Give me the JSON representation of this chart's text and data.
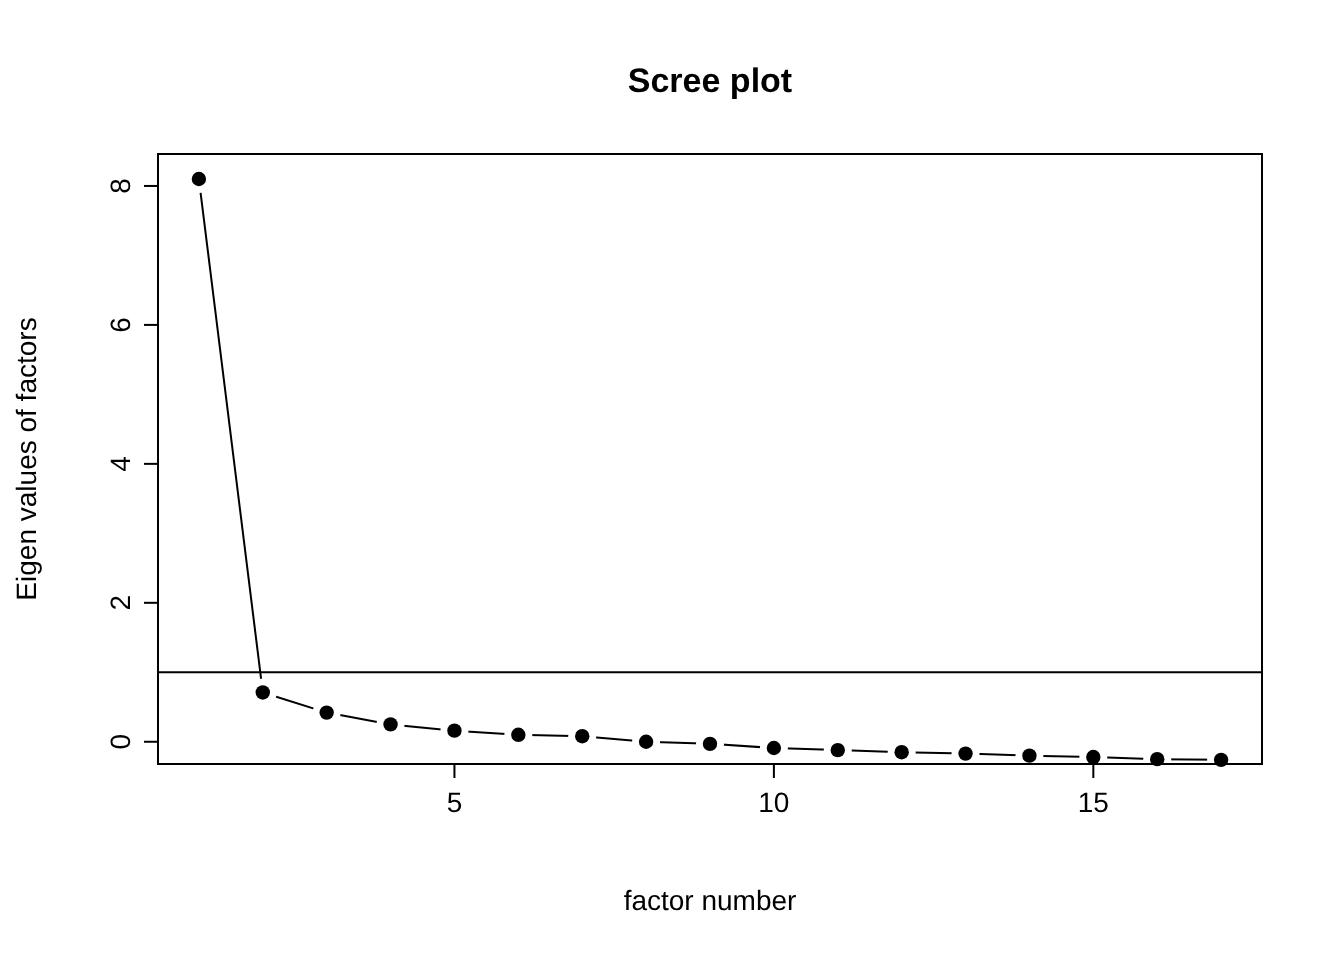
{
  "chart_data": {
    "type": "line",
    "title": "Scree plot",
    "xlabel": "factor number",
    "ylabel": "Eigen values of factors",
    "x": [
      1,
      2,
      3,
      4,
      5,
      6,
      7,
      8,
      9,
      10,
      11,
      12,
      13,
      14,
      15,
      16,
      17
    ],
    "series": [
      {
        "color": "#000000",
        "values": [
          8.1,
          0.71,
          0.42,
          0.25,
          0.16,
          0.1,
          0.08,
          0.0,
          -0.03,
          -0.09,
          -0.12,
          -0.15,
          -0.17,
          -0.2,
          -0.22,
          -0.25,
          -0.26
        ]
      }
    ],
    "xlim": [
      0.36,
      17.64
    ],
    "ylim": [
      -0.32,
      8.46
    ],
    "xticks": [
      5,
      10,
      15
    ],
    "yticks": [
      0,
      2,
      4,
      6,
      8
    ],
    "ref_lines": [
      {
        "axis": "y",
        "value": 1,
        "color": "#000000"
      }
    ],
    "grid": false,
    "marker": "circle",
    "line_style": "solid"
  }
}
